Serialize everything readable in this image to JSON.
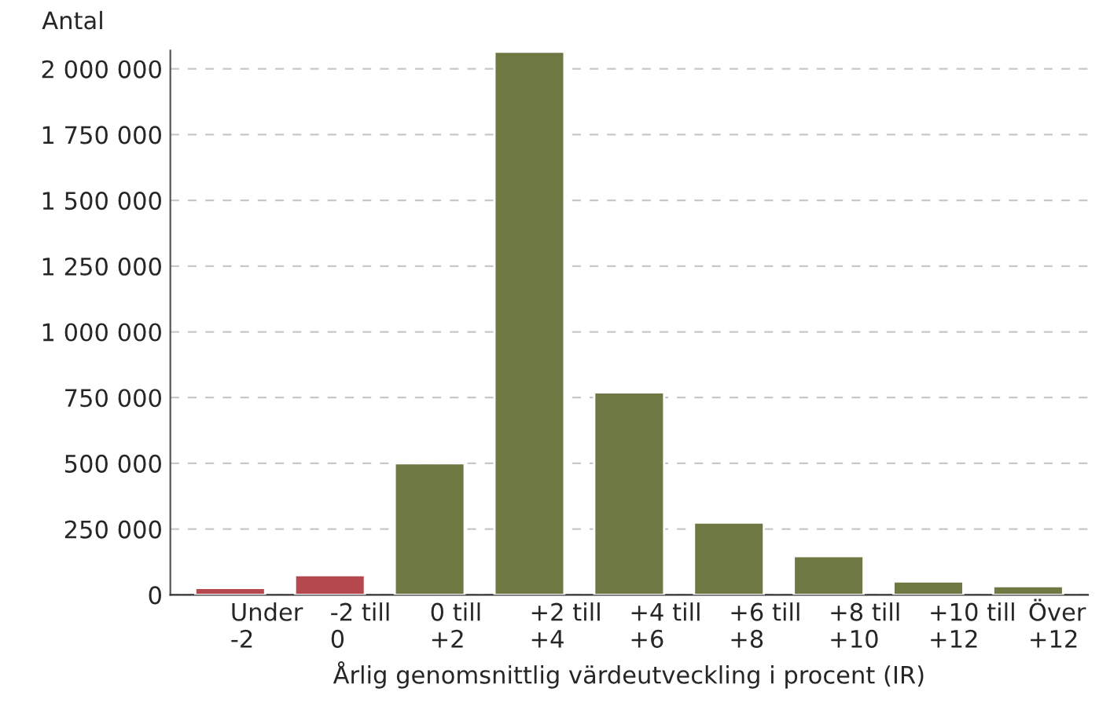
{
  "chart_data": {
    "type": "bar",
    "ylabel": "Antal",
    "xlabel": "Årlig genomsnittlig värdeutveckling i procent (IR)",
    "categories": [
      "Under\n-2",
      "-2 till\n0",
      "0 till\n+2",
      "+2 till\n+4",
      "+4 till\n+6",
      "+6 till\n+8",
      "+8 till\n+10",
      "+10 till\n+12",
      "Över\n+12"
    ],
    "values": [
      26000,
      75000,
      500000,
      2065000,
      770000,
      275000,
      147000,
      51000,
      33000
    ],
    "colors": [
      "#b5474f",
      "#b5474f",
      "#6e7843",
      "#6e7843",
      "#6e7843",
      "#6e7843",
      "#6e7843",
      "#6e7843",
      "#6e7843"
    ],
    "ylim": [
      0,
      2070000
    ],
    "yticks": [
      {
        "value": 0,
        "label": "0"
      },
      {
        "value": 250000,
        "label": "250 000"
      },
      {
        "value": 500000,
        "label": "500 000"
      },
      {
        "value": 750000,
        "label": "750 000"
      },
      {
        "value": 1000000,
        "label": "1 000 000"
      },
      {
        "value": 1250000,
        "label": "1 250 000"
      },
      {
        "value": 1500000,
        "label": "1 500 000"
      },
      {
        "value": 1750000,
        "label": "1 750 000"
      },
      {
        "value": 2000000,
        "label": "2 000 000"
      }
    ],
    "grid": "y",
    "legend": false
  }
}
